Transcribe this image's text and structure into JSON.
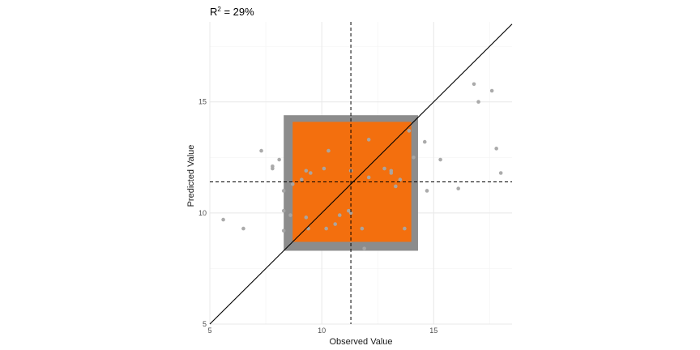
{
  "colors": {
    "background": "#ffffff",
    "grid_major": "#e8e8e8",
    "grid_minor": "#f3f3f3",
    "outer_box": "#8c8c8c",
    "inner_box": "#f36f0e",
    "points": "#a6a6a6",
    "line": "#000000"
  },
  "chart_data": {
    "type": "scatter",
    "title": "R² = 29%",
    "title_parts": {
      "base": "R",
      "superscript": "2",
      "rest": " = 29%"
    },
    "xlabel": "Observed Value",
    "ylabel": "Predicted Value",
    "xlim": [
      5,
      18.5
    ],
    "ylim": [
      5,
      18.6
    ],
    "xticks": [
      5,
      10,
      15
    ],
    "yticks": [
      5,
      10,
      15
    ],
    "xtick_labels": [
      "5",
      "10",
      "15"
    ],
    "ytick_labels": [
      "5",
      "10",
      "15"
    ],
    "minor_x": [
      7.5,
      12.5,
      17.5
    ],
    "minor_y": [
      7.5,
      12.5,
      17.5
    ],
    "mean_observed": 11.3,
    "mean_predicted": 11.4,
    "identity_line": true,
    "outer_box": {
      "x0": 8.3,
      "x1": 14.3,
      "y0": 8.3,
      "y1": 14.4
    },
    "inner_box": {
      "x0": 8.7,
      "x1": 14.0,
      "y0": 8.7,
      "y1": 14.1
    },
    "points": [
      {
        "x": 5.6,
        "y": 9.7
      },
      {
        "x": 6.5,
        "y": 9.3
      },
      {
        "x": 7.3,
        "y": 12.8
      },
      {
        "x": 7.8,
        "y": 12.0
      },
      {
        "x": 7.8,
        "y": 12.1
      },
      {
        "x": 8.1,
        "y": 12.4
      },
      {
        "x": 8.3,
        "y": 11.0
      },
      {
        "x": 8.3,
        "y": 10.1
      },
      {
        "x": 8.3,
        "y": 9.2
      },
      {
        "x": 8.6,
        "y": 9.9
      },
      {
        "x": 8.7,
        "y": 11.3
      },
      {
        "x": 9.1,
        "y": 11.5
      },
      {
        "x": 9.3,
        "y": 9.8
      },
      {
        "x": 9.3,
        "y": 11.9
      },
      {
        "x": 9.4,
        "y": 9.3
      },
      {
        "x": 9.5,
        "y": 11.8
      },
      {
        "x": 10.1,
        "y": 12.0
      },
      {
        "x": 10.2,
        "y": 9.3
      },
      {
        "x": 10.3,
        "y": 12.8
      },
      {
        "x": 10.6,
        "y": 9.5
      },
      {
        "x": 10.8,
        "y": 9.9
      },
      {
        "x": 11.2,
        "y": 10.1
      },
      {
        "x": 11.3,
        "y": 10.0
      },
      {
        "x": 11.3,
        "y": 11.9
      },
      {
        "x": 11.8,
        "y": 9.3
      },
      {
        "x": 11.9,
        "y": 8.4
      },
      {
        "x": 12.1,
        "y": 13.3
      },
      {
        "x": 12.1,
        "y": 11.6
      },
      {
        "x": 12.8,
        "y": 12.0
      },
      {
        "x": 13.1,
        "y": 11.8
      },
      {
        "x": 13.1,
        "y": 11.9
      },
      {
        "x": 13.3,
        "y": 11.2
      },
      {
        "x": 13.5,
        "y": 11.5
      },
      {
        "x": 13.7,
        "y": 9.3
      },
      {
        "x": 13.9,
        "y": 13.7
      },
      {
        "x": 14.1,
        "y": 12.5
      },
      {
        "x": 14.6,
        "y": 13.2
      },
      {
        "x": 14.7,
        "y": 11.0
      },
      {
        "x": 15.3,
        "y": 12.4
      },
      {
        "x": 16.1,
        "y": 11.1
      },
      {
        "x": 16.8,
        "y": 15.8
      },
      {
        "x": 17.0,
        "y": 15.0
      },
      {
        "x": 17.6,
        "y": 15.5
      },
      {
        "x": 17.8,
        "y": 12.9
      },
      {
        "x": 18.0,
        "y": 11.8
      }
    ]
  }
}
